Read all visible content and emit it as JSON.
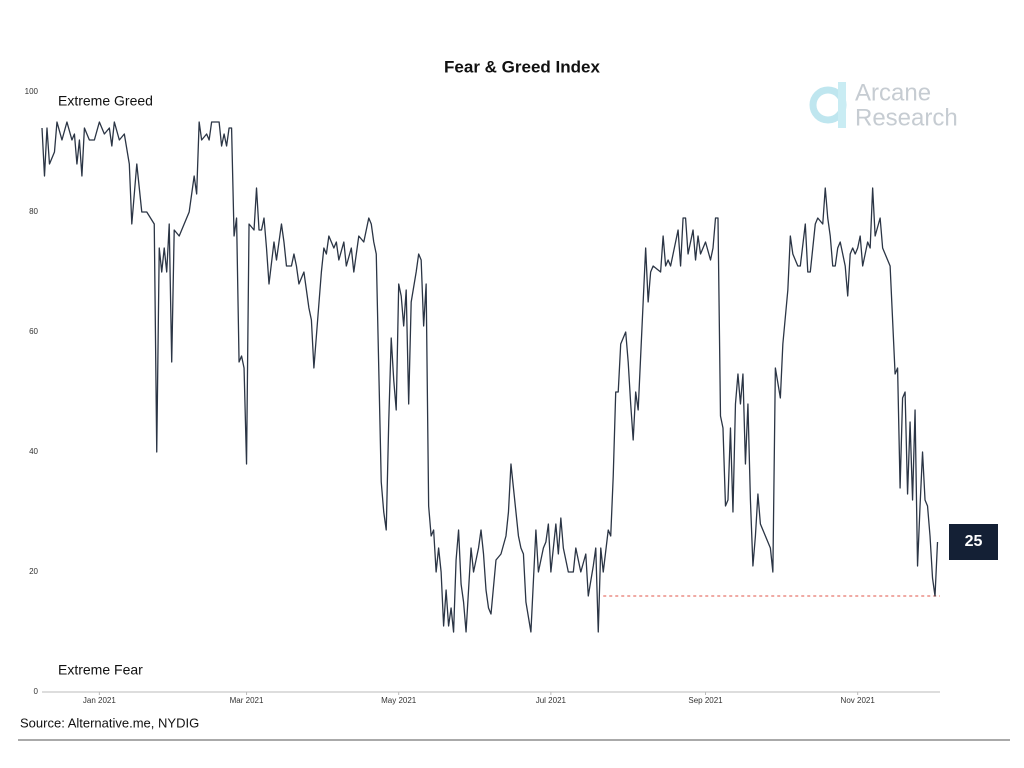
{
  "chart_data": {
    "type": "line",
    "title": "Fear & Greed Index",
    "source": "Source: Alternative.me, NYDIG",
    "logo": [
      "Arcane",
      "Research"
    ],
    "annotations": [
      "Extreme Greed",
      "Extreme Fear"
    ],
    "color": "#2b3545",
    "xlim": [
      -23,
      337
    ],
    "xticks": [
      {
        "value": 0,
        "label": "Jan 2021"
      },
      {
        "value": 59,
        "label": "Mar 2021"
      },
      {
        "value": 120,
        "label": "May 2021"
      },
      {
        "value": 181,
        "label": "Jul 2021"
      },
      {
        "value": 243,
        "label": "Sep 2021"
      },
      {
        "value": 304,
        "label": "Nov 2021"
      }
    ],
    "ylim": [
      0,
      100
    ],
    "yticks": [
      0,
      20,
      40,
      60,
      80,
      100
    ],
    "grid": false,
    "reference_line": {
      "value": 16,
      "x_start": 202,
      "color": "#e0554a"
    },
    "x": [
      -23,
      -22,
      -21,
      -20,
      -18,
      -17,
      -15,
      -13,
      -11,
      -10,
      -9,
      -8,
      -7,
      -6,
      -4,
      -2,
      0,
      2,
      4,
      5,
      6,
      8,
      10,
      12,
      13,
      15,
      17,
      19,
      22,
      23,
      24,
      25,
      26,
      27,
      28,
      29,
      30,
      32,
      34,
      36,
      38,
      39,
      40,
      41,
      43,
      44,
      45,
      48,
      49,
      50,
      51,
      52,
      53,
      54,
      55,
      56,
      57,
      58,
      59,
      60,
      62,
      63,
      64,
      65,
      66,
      67,
      68,
      70,
      71,
      73,
      74,
      75,
      77,
      78,
      79,
      80,
      82,
      84,
      85,
      86,
      89,
      90,
      91,
      92,
      94,
      95,
      96,
      98,
      99,
      101,
      102,
      104,
      106,
      108,
      109,
      110,
      111,
      113,
      114,
      115,
      116,
      117,
      118,
      119,
      120,
      121,
      122,
      123,
      124,
      125,
      127,
      128,
      129,
      130,
      131,
      132,
      133,
      134,
      135,
      136,
      137,
      138,
      139,
      140,
      141,
      142,
      143,
      144,
      145,
      146,
      147,
      149,
      150,
      152,
      153,
      154,
      155,
      156,
      157,
      159,
      161,
      163,
      164,
      165,
      166,
      168,
      169,
      170,
      171,
      173,
      175,
      176,
      178,
      179,
      180,
      181,
      183,
      184,
      185,
      186,
      188,
      190,
      191,
      193,
      195,
      196,
      198,
      199,
      200,
      201,
      202,
      204,
      205,
      206,
      207,
      208,
      209,
      211,
      212,
      213,
      214,
      215,
      216,
      218,
      219,
      220,
      221,
      222,
      225,
      226,
      227,
      228,
      229,
      232,
      233,
      234,
      235,
      236,
      238,
      239,
      240,
      241,
      242,
      243,
      245,
      246,
      247,
      248,
      249,
      250,
      251,
      252,
      253,
      254,
      255,
      256,
      257,
      258,
      259,
      260,
      261,
      262,
      263,
      264,
      265,
      267,
      269,
      270,
      271,
      273,
      274,
      276,
      277,
      278,
      280,
      281,
      283,
      284,
      285,
      287,
      288,
      290,
      291,
      292,
      293,
      294,
      295,
      296,
      297,
      298,
      299,
      300,
      301,
      302,
      303,
      304,
      305,
      306,
      307,
      308,
      309,
      310,
      311,
      313,
      314,
      316,
      317,
      319,
      320,
      321,
      322,
      323,
      324,
      325,
      326,
      327,
      328,
      329,
      330,
      331,
      332,
      333,
      334,
      335,
      336
    ],
    "values": [
      94,
      86,
      94,
      88,
      90,
      95,
      92,
      95,
      92,
      93,
      88,
      92,
      86,
      94,
      92,
      92,
      95,
      93,
      94,
      91,
      95,
      92,
      93,
      88,
      78,
      88,
      80,
      80,
      78,
      40,
      74,
      70,
      74,
      70,
      78,
      55,
      77,
      76,
      78,
      80,
      86,
      83,
      95,
      92,
      93,
      92,
      95,
      95,
      91,
      93,
      91,
      94,
      94,
      76,
      79,
      55,
      56,
      54,
      38,
      78,
      77,
      84,
      77,
      77,
      79,
      74,
      68,
      75,
      72,
      78,
      75,
      71,
      71,
      73,
      71,
      68,
      70,
      64,
      62,
      54,
      70,
      74,
      73,
      76,
      74,
      75,
      72,
      75,
      71,
      74,
      70,
      76,
      75,
      79,
      78,
      75,
      73,
      35,
      30,
      27,
      45,
      59,
      52,
      47,
      68,
      66,
      61,
      67,
      48,
      65,
      70,
      73,
      72,
      61,
      68,
      31,
      26,
      27,
      20,
      24,
      20,
      11,
      17,
      11,
      14,
      10,
      22,
      27,
      18,
      15,
      10,
      24,
      20,
      24,
      27,
      23,
      17,
      14,
      13,
      22,
      23,
      26,
      30,
      38,
      34,
      26,
      24,
      23,
      15,
      10,
      27,
      20,
      24,
      25,
      28,
      20,
      28,
      23,
      29,
      24,
      20,
      20,
      24,
      20,
      23,
      16,
      21,
      24,
      10,
      24,
      20,
      27,
      26,
      36,
      50,
      50,
      58,
      60,
      55,
      48,
      42,
      50,
      47,
      65,
      74,
      65,
      70,
      71,
      70,
      76,
      71,
      72,
      71,
      77,
      71,
      79,
      79,
      73,
      77,
      72,
      76,
      73,
      74,
      75,
      72,
      74,
      79,
      79,
      46,
      44,
      31,
      32,
      44,
      30,
      48,
      53,
      48,
      53,
      38,
      48,
      32,
      21,
      26,
      33,
      28,
      26,
      24,
      20,
      54,
      49,
      58,
      67,
      76,
      73,
      71,
      71,
      78,
      70,
      70,
      78,
      79,
      78,
      84,
      79,
      76,
      71,
      71,
      74,
      75,
      73,
      71,
      66,
      73,
      74,
      73,
      74,
      76,
      71,
      73,
      75,
      74,
      84,
      76,
      79,
      74,
      72,
      71,
      53,
      54,
      34,
      49,
      50,
      33,
      45,
      32,
      47,
      21,
      31,
      40,
      32,
      31,
      26,
      19,
      16,
      25
    ]
  }
}
